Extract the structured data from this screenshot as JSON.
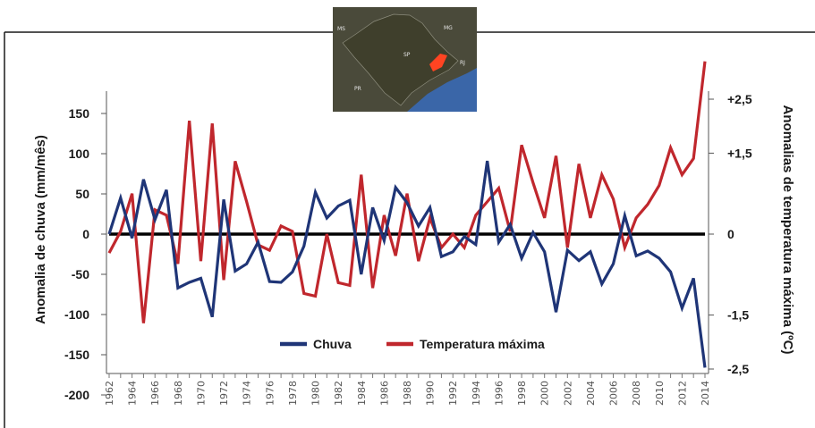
{
  "chart_data": {
    "type": "line",
    "xlabel": "",
    "ylabel_left": "Anomalia de chuva (mm/mês)",
    "ylabel_right": "Anomalias de temperatura máxima (ºC)",
    "x": [
      1962,
      1963,
      1964,
      1965,
      1966,
      1967,
      1968,
      1969,
      1970,
      1971,
      1972,
      1973,
      1974,
      1975,
      1976,
      1977,
      1978,
      1979,
      1980,
      1981,
      1982,
      1983,
      1984,
      1985,
      1986,
      1987,
      1988,
      1989,
      1990,
      1991,
      1992,
      1993,
      1994,
      1995,
      1996,
      1997,
      1998,
      1999,
      2000,
      2001,
      2002,
      2003,
      2004,
      2005,
      2006,
      2007,
      2008,
      2009,
      2010,
      2011,
      2012,
      2013,
      2014
    ],
    "xlim": [
      1962,
      2014
    ],
    "x_tick_labels": [
      "1962",
      "1964",
      "1966",
      "1968",
      "1970",
      "1972",
      "1974",
      "1976",
      "1978",
      "1980",
      "1982",
      "1984",
      "1986",
      "1988",
      "1990",
      "1992",
      "1994",
      "1996",
      "1998",
      "2000",
      "2002",
      "2004",
      "2006",
      "2008",
      "2010",
      "2012",
      "2014"
    ],
    "ylim_left": [
      -200,
      150
    ],
    "y_ticks_left": [
      150,
      100,
      50,
      0,
      -50,
      -100,
      -150,
      -200
    ],
    "y_tick_labels_left": [
      "150",
      "100",
      "50",
      "0",
      "-50",
      "-100",
      "-150",
      "-200"
    ],
    "ylim_right": [
      -2.5,
      2.5
    ],
    "y_ticks_right": [
      2.5,
      1.5,
      0,
      -1.5,
      -2.5
    ],
    "y_tick_labels_right": [
      "+2,5",
      "+1,5",
      "0",
      "-1,5",
      "-2,5"
    ],
    "series": [
      {
        "name": "Chuva",
        "axis": "left",
        "color": "#1f3577",
        "values": [
          0,
          45,
          -5,
          68,
          18,
          55,
          -67,
          -60,
          -55,
          -103,
          43,
          -46,
          -37,
          -10,
          -59,
          -60,
          -47,
          -15,
          52,
          20,
          35,
          42,
          -50,
          33,
          -8,
          58,
          39,
          10,
          33,
          -28,
          -22,
          -3,
          -13,
          91,
          -10,
          12,
          -30,
          2,
          -22,
          -97,
          -20,
          -33,
          -22,
          -62,
          -37,
          23,
          -27,
          -21,
          -30,
          -47,
          -92,
          -55,
          -166
        ]
      },
      {
        "name": "Temperatura máxima",
        "axis": "right",
        "color": "#c0272d",
        "values": [
          -0.35,
          0.05,
          0.75,
          -1.65,
          0.45,
          0.35,
          -0.55,
          2.1,
          -0.5,
          2.05,
          -0.85,
          1.35,
          0.6,
          -0.2,
          -0.3,
          0.15,
          0.05,
          -1.1,
          -1.15,
          0.0,
          -0.9,
          -0.95,
          1.1,
          -1.0,
          0.35,
          -0.4,
          0.75,
          -0.5,
          0.3,
          -0.25,
          0.0,
          -0.25,
          0.35,
          0.6,
          0.85,
          0.05,
          1.65,
          0.95,
          0.3,
          1.45,
          -0.25,
          1.3,
          0.3,
          1.1,
          0.65,
          -0.25,
          0.3,
          0.55,
          0.9,
          1.6,
          1.1,
          1.4,
          3.2
        ]
      }
    ],
    "zero_line": true,
    "legend": {
      "position": "bottom-center",
      "entries": [
        "Chuva",
        "Temperatura máxima"
      ]
    },
    "grid": false
  },
  "map": {
    "labels": [
      "MS",
      "MG",
      "PR",
      "SP",
      "RJ"
    ],
    "highlight_color": "#ff4422"
  }
}
